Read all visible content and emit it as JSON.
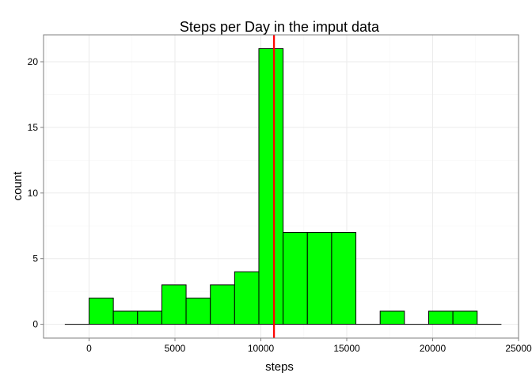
{
  "chart_data": {
    "type": "bar",
    "title": "Steps per Day in the imput data",
    "xlabel": "steps",
    "ylabel": "count",
    "xlim": [
      -2650,
      25000
    ],
    "ylim": [
      -1.05,
      22.05
    ],
    "x_ticks": [
      0,
      5000,
      10000,
      15000,
      20000,
      25000
    ],
    "x_tick_labels": [
      "0",
      "5000",
      "10000",
      "15000",
      "20000",
      "25000"
    ],
    "y_ticks": [
      0,
      5,
      10,
      15,
      20
    ],
    "y_tick_labels": [
      "0",
      "5",
      "10",
      "15",
      "20"
    ],
    "grid": true,
    "bin_width": 1412,
    "bins": [
      {
        "x_start": -1412,
        "x_end": 0,
        "count": 0
      },
      {
        "x_start": 0,
        "x_end": 1412,
        "count": 2
      },
      {
        "x_start": 1412,
        "x_end": 2824,
        "count": 1
      },
      {
        "x_start": 2824,
        "x_end": 4236,
        "count": 1
      },
      {
        "x_start": 4236,
        "x_end": 5648,
        "count": 3
      },
      {
        "x_start": 5648,
        "x_end": 7060,
        "count": 2
      },
      {
        "x_start": 7060,
        "x_end": 8472,
        "count": 3
      },
      {
        "x_start": 8472,
        "x_end": 9884,
        "count": 4
      },
      {
        "x_start": 9884,
        "x_end": 11296,
        "count": 21
      },
      {
        "x_start": 11296,
        "x_end": 12708,
        "count": 7
      },
      {
        "x_start": 12708,
        "x_end": 14120,
        "count": 7
      },
      {
        "x_start": 14120,
        "x_end": 15532,
        "count": 7
      },
      {
        "x_start": 15532,
        "x_end": 16944,
        "count": 0
      },
      {
        "x_start": 16944,
        "x_end": 18356,
        "count": 1
      },
      {
        "x_start": 18356,
        "x_end": 19768,
        "count": 0
      },
      {
        "x_start": 19768,
        "x_end": 21180,
        "count": 1
      },
      {
        "x_start": 21180,
        "x_end": 22592,
        "count": 1
      },
      {
        "x_start": 22592,
        "x_end": 24004,
        "count": 0
      }
    ],
    "mean_line": {
      "x": 10766,
      "color": "#ff0000"
    },
    "colors": {
      "bar_fill": "#00ff00",
      "bar_stroke": "#000000",
      "panel_border": "#7f7f7f",
      "grid": "#ebebeb"
    }
  }
}
